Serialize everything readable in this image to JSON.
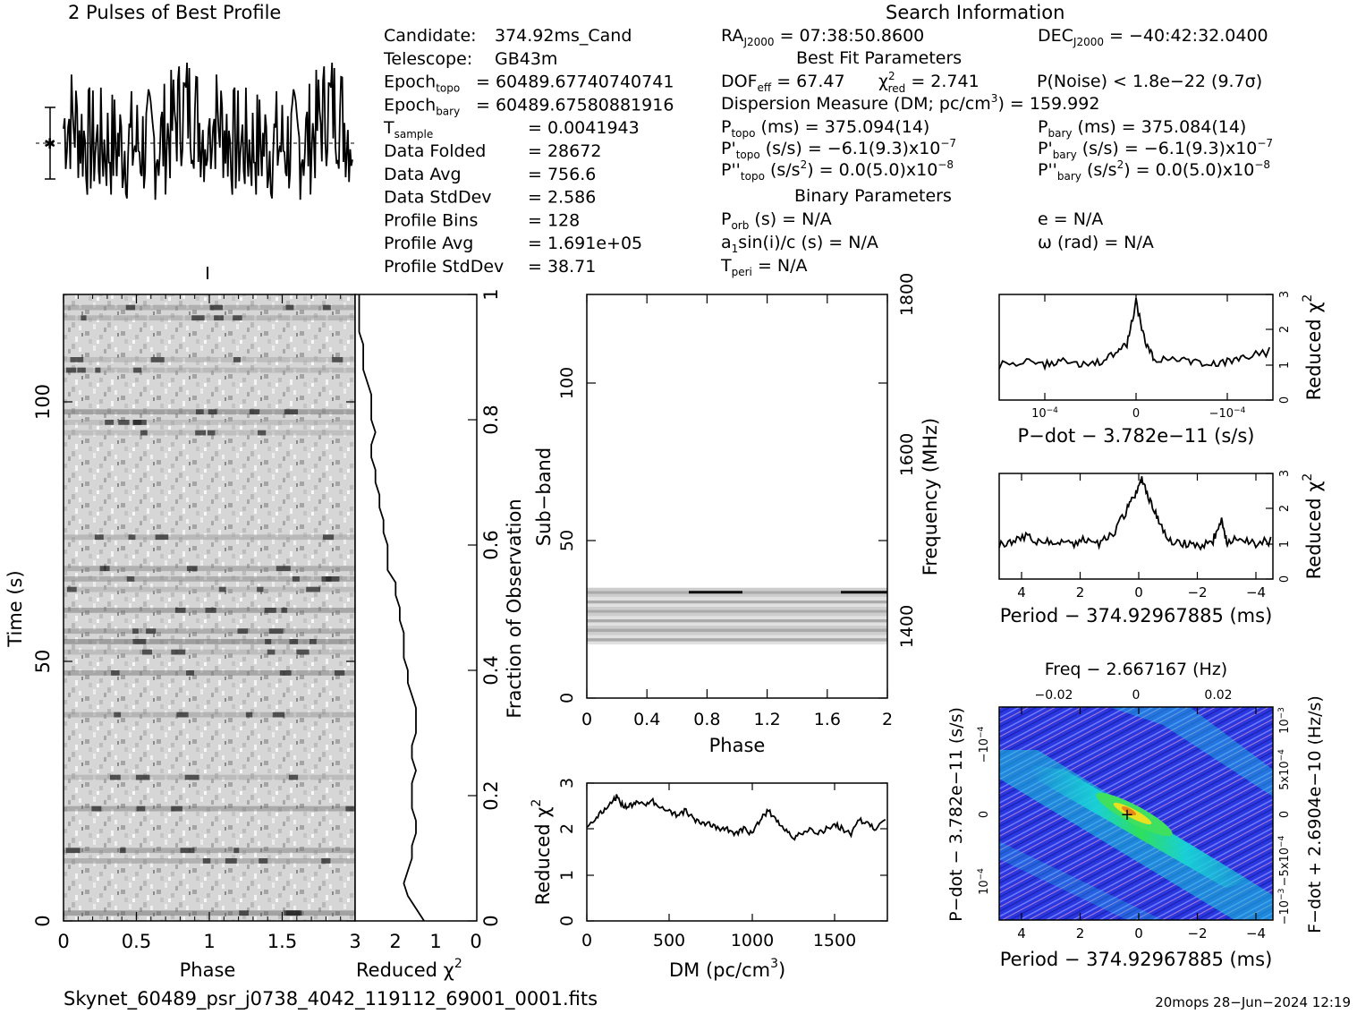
{
  "header": {
    "profile_title": "2 Pulses of Best Profile",
    "search_title": "Search Information"
  },
  "info_left": [
    {
      "label": "Candidate:",
      "sub": "",
      "value": "374.92ms_Cand"
    },
    {
      "label": "Telescope:",
      "sub": "",
      "value": "GB43m"
    },
    {
      "label": "Epoch",
      "sub": "topo",
      "value": "= 60489.67740740741"
    },
    {
      "label": "Epoch",
      "sub": "bary",
      "value": "= 60489.67580881916"
    },
    {
      "label": "T",
      "sub": "sample",
      "value": "= 0.0041943"
    },
    {
      "label": "Data Folded",
      "sub": "",
      "value": "= 28672"
    },
    {
      "label": "Data Avg",
      "sub": "",
      "value": "= 756.6"
    },
    {
      "label": "Data StdDev",
      "sub": "",
      "value": "= 2.586"
    },
    {
      "label": "Profile Bins",
      "sub": "",
      "value": "= 128"
    },
    {
      "label": "Profile Avg",
      "sub": "",
      "value": "= 1.691e+05"
    },
    {
      "label": "Profile StdDev",
      "sub": "",
      "value": "= 38.71"
    }
  ],
  "search_info": {
    "ra": "RA",
    "ra_sub": "J2000",
    "ra_value": "= 07:38:50.8600",
    "dec": "DEC",
    "dec_sub": "J2000",
    "dec_value": "= −40:42:32.0400",
    "best_fit_heading": "Best Fit Parameters",
    "dof": "DOF",
    "dof_sub": "eff",
    "dof_value": "= 67.47",
    "chi": "χ",
    "chi_sup": "2",
    "chi_sub": "red",
    "chi_value": "= 2.741",
    "pnoise": "P(Noise) < 1.8e−22  (9.7σ)",
    "dm_line": "Dispersion Measure (DM; pc/cm",
    "dm_sup": "3",
    "dm_value": ") = 159.992",
    "ptopo": "P",
    "ptopo_sub": "topo",
    "ptopo_value": "(ms) =  375.094(14)",
    "pbary": "P",
    "pbary_sub": "bary",
    "pbary_value": "(ms) =  375.084(14)",
    "pdtopo": "P'",
    "pdtopo_sub": "topo",
    "pdtopo_value": "(s/s) = −6.1(9.3)x10",
    "pdtopo_exp": "−7",
    "pdbary": "P'",
    "pdbary_sub": "bary",
    "pdbary_value": "(s/s) = −6.1(9.3)x10",
    "pdbary_exp": "−7",
    "pddtopo": "P''",
    "pddtopo_sub": "topo",
    "pddtopo_value": "(s/s",
    "pddtopo_value2": ") = 0.0(5.0)x10",
    "pddtopo_exp": "−8",
    "pddbary": "P''",
    "pddbary_sub": "bary",
    "pddbary_value": "(s/s",
    "pddbary_value2": ") = 0.0(5.0)x10",
    "pddbary_exp": "−8",
    "s2_sup": "2",
    "binary_heading": "Binary Parameters",
    "porb": "P",
    "porb_sub": "orb",
    "porb_value": "(s) = N/A",
    "ecc": "e = N/A",
    "a1": "a",
    "a1_sub": "1",
    "a1_value": "sin(i)/c (s) = N/A",
    "omega": "ω (rad) = N/A",
    "tperi": "T",
    "tperi_sub": "peri",
    "tperi_value": "= N/A"
  },
  "footer": {
    "filename": "Skynet_60489_psr_j0738_4042_119112_69001_0001.fits",
    "stamp": "20mops 28−Jun−2024 12:19"
  },
  "chart_data": [
    {
      "type": "line",
      "id": "profile",
      "title": "2 Pulses of Best Profile",
      "x_range": [
        0,
        2
      ],
      "description_values": {
        "phase_cycles": 2,
        "bins_per_cycle": 128
      }
    },
    {
      "type": "heatmap",
      "id": "time_phase",
      "xlabel": "Phase",
      "ylabel": "Time (s)",
      "x_ticks": [
        "0",
        "0.5",
        "1",
        "1.5"
      ],
      "y_ticks": [
        "0",
        "50",
        "100"
      ],
      "xlim": [
        0,
        2
      ],
      "ylim": [
        0,
        120
      ]
    },
    {
      "type": "line",
      "id": "time_chi2",
      "xlabel": "Reduced χ",
      "xlabel_sup": "2",
      "x_ticks": [
        "3",
        "2",
        "1",
        "0"
      ],
      "y2label": "Fraction of Observation",
      "y2_ticks": [
        "0",
        "0.2",
        "0.4",
        "0.6",
        "0.8",
        "1"
      ],
      "xlim": [
        3,
        0
      ],
      "ylim": [
        0,
        1
      ],
      "x": [
        1.3,
        1.5,
        1.7,
        1.8,
        1.7,
        1.6,
        1.6,
        1.5,
        1.5,
        1.6,
        1.6,
        1.6,
        1.5,
        1.6,
        1.6,
        1.5,
        1.5,
        1.5,
        1.6,
        1.7,
        1.7,
        1.8,
        1.8,
        1.8,
        1.9,
        1.9,
        2.0,
        2.0,
        2.2,
        2.2,
        2.2,
        2.3,
        2.3,
        2.4,
        2.4,
        2.5,
        2.5,
        2.6,
        2.6,
        2.5,
        2.6,
        2.6,
        2.6,
        2.7,
        2.8,
        2.8,
        2.8,
        2.9,
        2.9,
        2.9
      ],
      "y": [
        0.0,
        0.02,
        0.04,
        0.06,
        0.08,
        0.1,
        0.12,
        0.14,
        0.16,
        0.18,
        0.2,
        0.22,
        0.24,
        0.26,
        0.28,
        0.3,
        0.32,
        0.34,
        0.36,
        0.38,
        0.4,
        0.42,
        0.44,
        0.46,
        0.48,
        0.5,
        0.52,
        0.54,
        0.56,
        0.58,
        0.6,
        0.62,
        0.64,
        0.66,
        0.68,
        0.7,
        0.72,
        0.74,
        0.76,
        0.78,
        0.8,
        0.82,
        0.84,
        0.86,
        0.88,
        0.9,
        0.92,
        0.94,
        0.96,
        1.0
      ]
    },
    {
      "type": "heatmap",
      "id": "subband_phase",
      "xlabel": "Phase",
      "ylabel": "Sub−band",
      "y2label": "Frequency (MHz)",
      "x_ticks": [
        "0",
        "0.4",
        "0.8",
        "1.2",
        "1.6",
        "2"
      ],
      "y_ticks": [
        "0",
        "50",
        "100"
      ],
      "y2_ticks": [
        "1400",
        "1600",
        "1800"
      ],
      "xlim": [
        0,
        2
      ],
      "ylim": [
        0,
        128
      ],
      "active_subbands": [
        17,
        34
      ]
    },
    {
      "type": "line",
      "id": "dm_chi2",
      "xlabel": "DM (pc/cm",
      "xlabel_sup": "3",
      "ylabel": "Reduced χ",
      "ylabel_sup": "2",
      "x_ticks": [
        "0",
        "500",
        "1000",
        "1500"
      ],
      "y_ticks": [
        "0",
        "1",
        "2",
        "3"
      ],
      "xlim": [
        0,
        1820
      ],
      "ylim": [
        0,
        3
      ],
      "x": [
        0,
        50,
        100,
        150,
        180,
        220,
        260,
        300,
        350,
        400,
        450,
        500,
        550,
        600,
        650,
        700,
        750,
        800,
        850,
        900,
        950,
        1000,
        1050,
        1100,
        1150,
        1200,
        1250,
        1300,
        1350,
        1400,
        1450,
        1500,
        1550,
        1600,
        1650,
        1700,
        1750,
        1820
      ],
      "y": [
        2.1,
        2.2,
        2.4,
        2.6,
        2.7,
        2.5,
        2.5,
        2.6,
        2.5,
        2.6,
        2.5,
        2.4,
        2.3,
        2.4,
        2.2,
        2.1,
        2.1,
        2.0,
        2.0,
        1.9,
        2.0,
        1.9,
        2.2,
        2.4,
        2.2,
        2.0,
        1.8,
        1.9,
        2.0,
        1.9,
        2.0,
        2.1,
        2.0,
        1.9,
        2.2,
        2.1,
        2.0,
        2.2
      ]
    },
    {
      "type": "line",
      "id": "pdot_chi2",
      "xlabel": "P−dot − 3.782e−11 (s/s)",
      "ylabel": "Reduced χ",
      "ylabel_sup": "2",
      "x_ticks": [
        "10",
        "0",
        "−10"
      ],
      "x_tick_exp": [
        "−4",
        "",
        "−4"
      ],
      "y_ticks": [
        "0",
        "1",
        "2",
        "3"
      ],
      "xlim": [
        0.00015,
        -0.00015
      ],
      "ylim": [
        0,
        3
      ],
      "x": [
        0.00015,
        0.00012,
        0.0001,
        8e-05,
        6e-05,
        4e-05,
        2e-05,
        1e-05,
        0.0,
        -1e-05,
        -2e-05,
        -4e-05,
        -6e-05,
        -8e-05,
        -0.0001,
        -0.00012,
        -0.00015
      ],
      "y": [
        1.0,
        1.1,
        1.0,
        1.1,
        1.0,
        1.1,
        1.3,
        1.6,
        2.8,
        1.6,
        1.2,
        1.1,
        1.1,
        1.0,
        1.1,
        1.2,
        1.4
      ]
    },
    {
      "type": "line",
      "id": "period_chi2",
      "xlabel": "Period − 374.92967885 (ms)",
      "ylabel": "Reduced χ",
      "ylabel_sup": "2",
      "x_ticks": [
        "4",
        "2",
        "0",
        "−2",
        "−4"
      ],
      "y_ticks": [
        "0",
        "1",
        "2",
        "3"
      ],
      "xlim": [
        5,
        -4.6
      ],
      "ylim": [
        0,
        3
      ],
      "x": [
        5,
        4.5,
        4,
        3.5,
        3,
        2.5,
        2,
        1.5,
        1.0,
        0.5,
        0.2,
        0,
        -0.3,
        -0.6,
        -1,
        -1.5,
        -2,
        -2.5,
        -2.8,
        -3,
        -3.5,
        -4,
        -4.6
      ],
      "y": [
        1.0,
        1.1,
        1.2,
        1.0,
        1.1,
        1.0,
        1.1,
        1.0,
        1.3,
        2.0,
        2.4,
        2.8,
        2.2,
        1.6,
        1.1,
        1.0,
        0.9,
        1.1,
        1.7,
        1.0,
        1.2,
        1.0,
        1.1
      ]
    },
    {
      "type": "heatmap",
      "id": "period_pdot",
      "title": "Freq − 2.667167 (Hz)",
      "xlabel": "Period − 374.92967885 (ms)",
      "ylabel": "P−dot − 3.782e−11 (s/s)",
      "y2label": "F−dot + 2.6904e−10 (Hz/s)",
      "x_ticks": [
        "4",
        "2",
        "0",
        "−2",
        "−4"
      ],
      "top_ticks": [
        "−0.02",
        "0",
        "0.02"
      ],
      "xlim": [
        5,
        -4.6
      ],
      "best_fit": {
        "period": -0.2,
        "pdot": 0
      }
    }
  ]
}
